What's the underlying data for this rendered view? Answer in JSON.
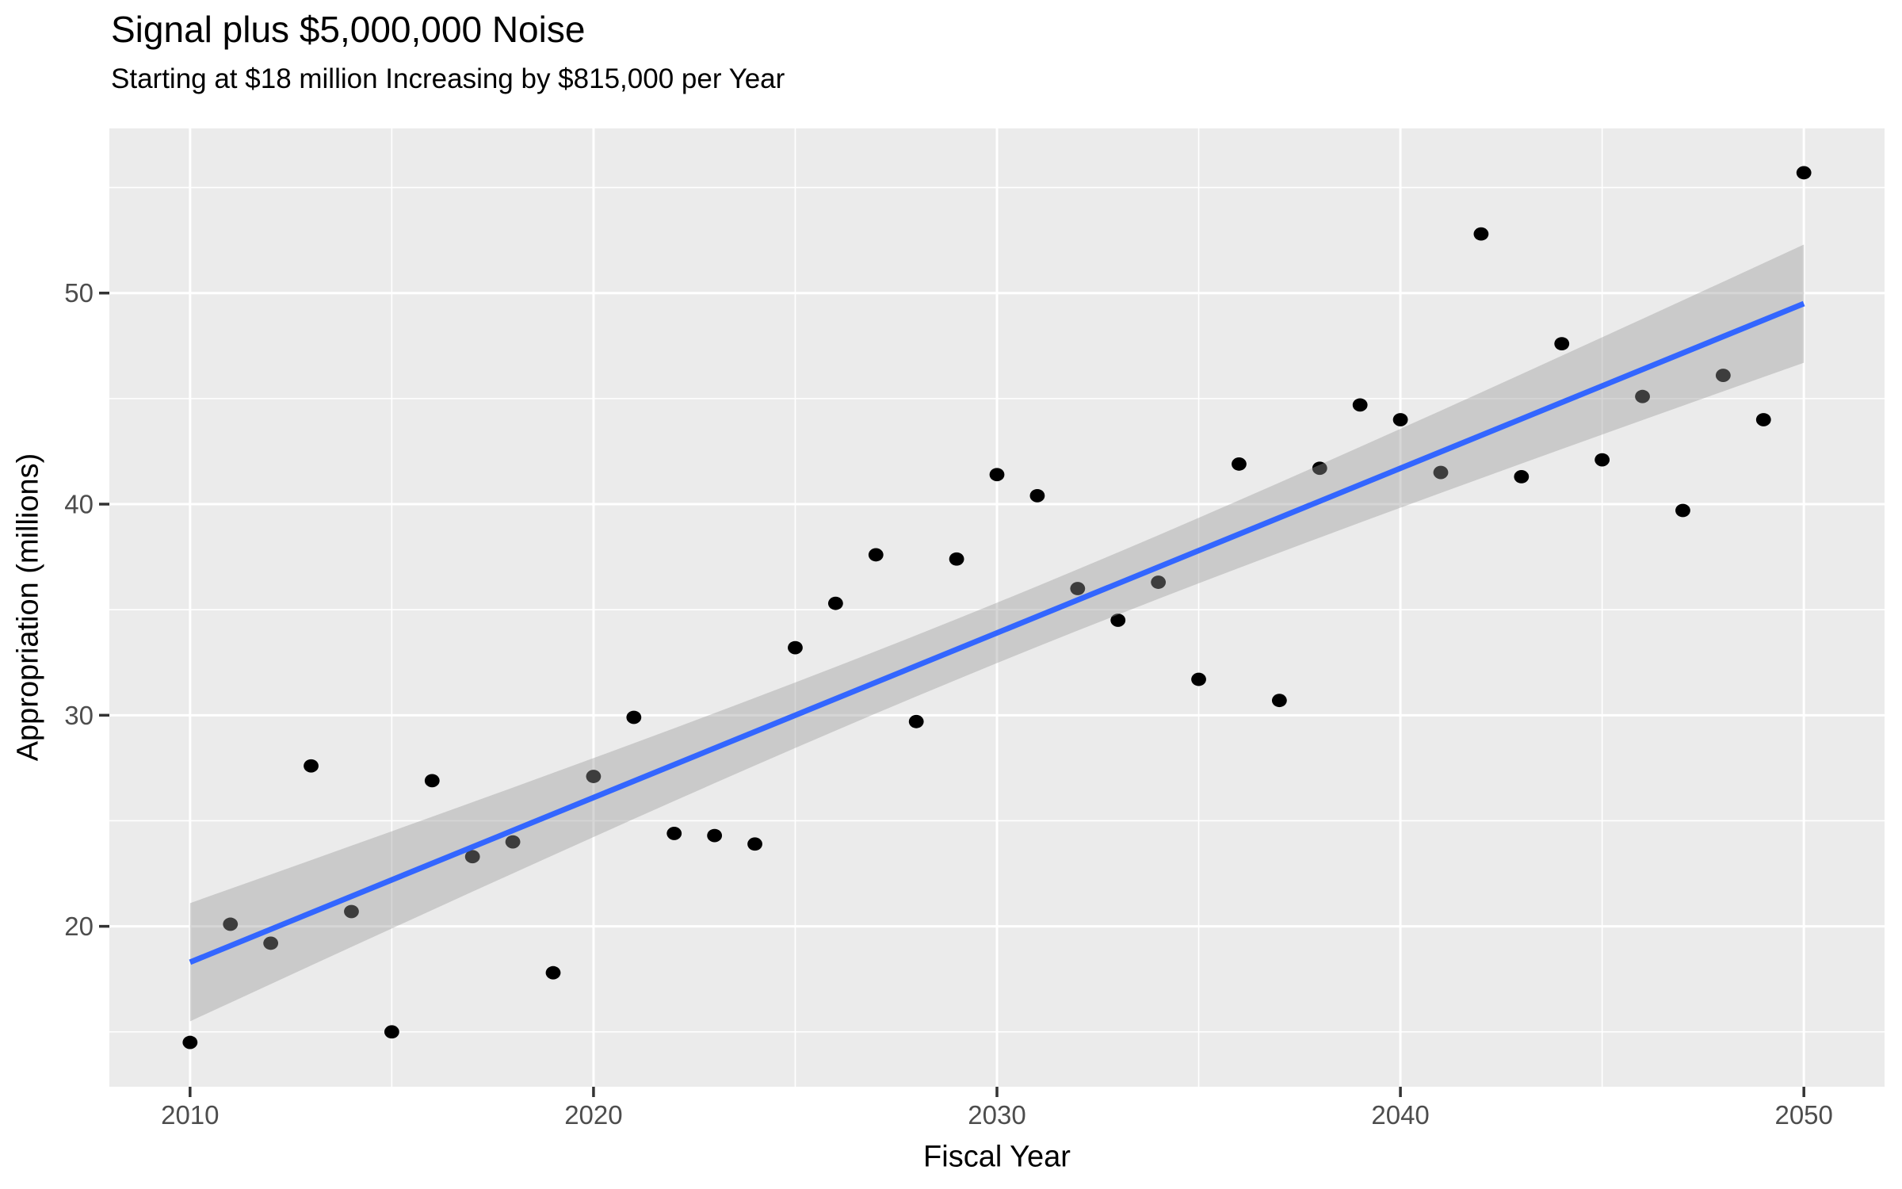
{
  "chart": {
    "title": "Signal plus $5,000,000 Noise",
    "subtitle": "Starting at $18 million Increasing by $815,000 per Year",
    "xlabel": "Fiscal Year",
    "ylabel": "Appropriation (millions)"
  },
  "chart_data": {
    "type": "scatter",
    "title": "Signal plus $5,000,000 Noise",
    "subtitle": "Starting at $18 million Increasing by $815,000 per Year",
    "xlabel": "Fiscal Year",
    "ylabel": "Appropriation (millions)",
    "x": [
      2010,
      2011,
      2012,
      2013,
      2014,
      2015,
      2016,
      2017,
      2018,
      2019,
      2020,
      2021,
      2022,
      2023,
      2024,
      2025,
      2026,
      2027,
      2028,
      2029,
      2030,
      2031,
      2032,
      2033,
      2034,
      2035,
      2036,
      2037,
      2038,
      2039,
      2040,
      2041,
      2042,
      2043,
      2044,
      2045,
      2046,
      2047,
      2048,
      2049,
      2050
    ],
    "y": [
      14.5,
      20.1,
      19.2,
      27.6,
      20.7,
      15.0,
      26.9,
      23.3,
      24.0,
      17.8,
      27.1,
      29.9,
      24.4,
      24.3,
      23.9,
      33.2,
      35.3,
      37.6,
      29.7,
      37.4,
      41.4,
      40.4,
      36.0,
      34.5,
      36.3,
      31.7,
      41.9,
      30.7,
      41.7,
      44.7,
      44.0,
      41.5,
      52.8,
      41.3,
      47.6,
      42.1,
      45.1,
      39.7,
      46.1,
      44.0,
      55.7
    ],
    "xlim": [
      2008,
      2052
    ],
    "ylim": [
      12.4,
      57.8
    ],
    "x_major_ticks": [
      2010,
      2020,
      2030,
      2040,
      2050
    ],
    "x_minor_ticks": [
      2015,
      2025,
      2035,
      2045
    ],
    "y_major_ticks": [
      20,
      30,
      40,
      50
    ],
    "y_minor_ticks": [
      15,
      25,
      35,
      45,
      55
    ],
    "grid": "major and minor white gridlines on grey panel, legend none",
    "smooth": {
      "method": "lm",
      "line": {
        "x0": 2010,
        "y0": 18.3,
        "x1": 2050,
        "y1": 49.5
      },
      "ci_halfwidth_at_ends": 2.8,
      "ci_halfwidth_at_center": 1.43,
      "ci_center_x": 2030
    },
    "colors": {
      "panel_background": "#EBEBEB",
      "gridline": "#FFFFFF",
      "point": "#000000",
      "smooth_line": "#3366FF",
      "ci_band": "rgba(153,153,153,0.4)",
      "tick_label": "#4D4D4D",
      "tick_mark": "#333333",
      "text": "#000000"
    }
  }
}
